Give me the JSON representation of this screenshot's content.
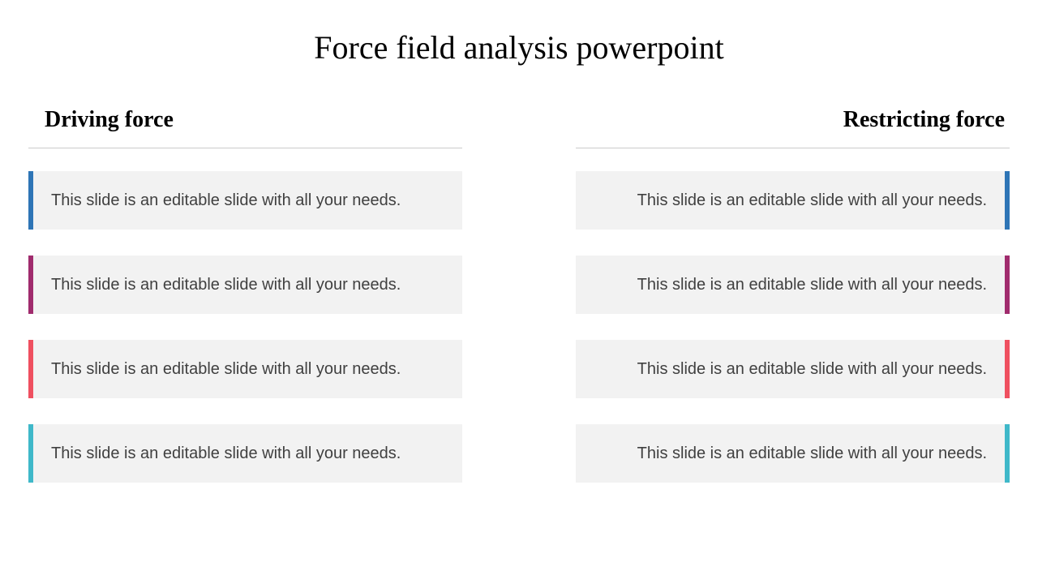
{
  "title": "Force field analysis powerpoint",
  "driving": {
    "header": "Driving force",
    "items": [
      {
        "text": "This slide is an editable slide with all your needs.",
        "color": "#2e75b6"
      },
      {
        "text": "This slide is an editable slide with all your needs.",
        "color": "#a02b6d"
      },
      {
        "text": "This slide is an editable slide with all your needs.",
        "color": "#ef5060"
      },
      {
        "text": "This slide is an editable slide with all your needs.",
        "color": "#3fb8c9"
      }
    ]
  },
  "restricting": {
    "header": "Restricting force",
    "items": [
      {
        "text": "This slide is an editable slide with all your needs.",
        "color": "#2e75b6"
      },
      {
        "text": "This slide is an editable slide with all your needs.",
        "color": "#a02b6d"
      },
      {
        "text": "This slide is an editable slide with all your needs.",
        "color": "#ef5060"
      },
      {
        "text": "This slide is an editable slide with all your needs.",
        "color": "#3fb8c9"
      }
    ]
  }
}
